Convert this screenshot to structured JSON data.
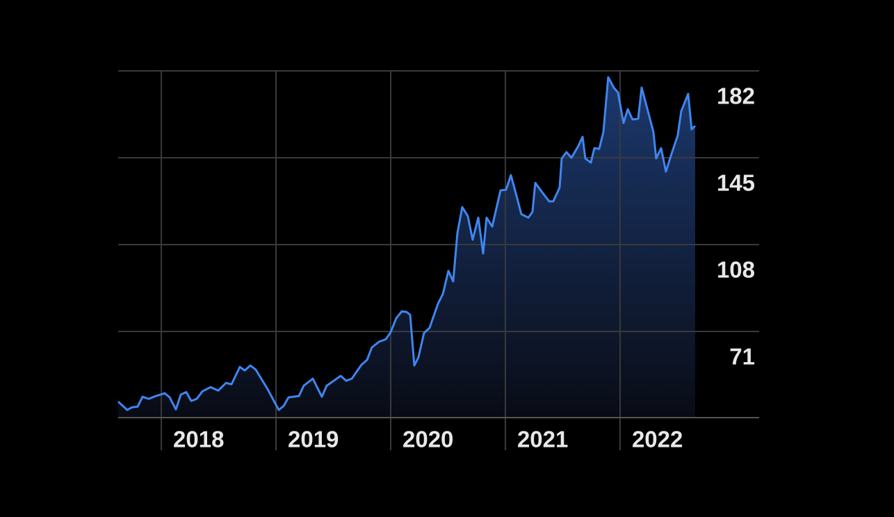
{
  "chart_data": {
    "type": "line",
    "x": [
      2017.624,
      2017.703,
      2017.745,
      2017.794,
      2017.836,
      2017.891,
      2017.952,
      2018.03,
      2018.073,
      2018.127,
      2018.17,
      2018.218,
      2018.261,
      2018.309,
      2018.358,
      2018.43,
      2018.497,
      2018.564,
      2018.612,
      2018.685,
      2018.727,
      2018.776,
      2018.824,
      2018.927,
      2019.024,
      2019.067,
      2019.109,
      2019.2,
      2019.242,
      2019.321,
      2019.4,
      2019.442,
      2019.564,
      2019.612,
      2019.661,
      2019.745,
      2019.794,
      2019.836,
      2019.897,
      2019.958,
      2020.0,
      2020.048,
      2020.097,
      2020.139,
      2020.17,
      2020.206,
      2020.242,
      2020.291,
      2020.339,
      2020.412,
      2020.455,
      2020.503,
      2020.545,
      2020.582,
      2020.624,
      2020.673,
      2020.715,
      2020.764,
      2020.806,
      2020.836,
      2020.885,
      2020.958,
      2021.006,
      2021.048,
      2021.091,
      2021.139,
      2021.2,
      2021.236,
      2021.261,
      2021.327,
      2021.382,
      2021.418,
      2021.473,
      2021.491,
      2021.533,
      2021.576,
      2021.636,
      2021.673,
      2021.697,
      2021.745,
      2021.776,
      2021.818,
      2021.855,
      2021.897,
      2021.945,
      2021.982,
      2022.03,
      2022.067,
      2022.109,
      2022.158,
      2022.188,
      2022.248,
      2022.291,
      2022.315,
      2022.358,
      2022.4,
      2022.448,
      2022.503,
      2022.533,
      2022.594,
      2022.624,
      2022.655
    ],
    "values": [
      41.1,
      37.6,
      38.7,
      39.0,
      43.2,
      42.3,
      43.5,
      44.7,
      42.9,
      37.8,
      44.1,
      45.2,
      41.4,
      42.3,
      45.5,
      47.3,
      45.8,
      49.1,
      48.5,
      55.9,
      54.4,
      56.5,
      54.7,
      46.4,
      37.6,
      39.3,
      42.9,
      43.5,
      47.9,
      50.9,
      43.2,
      47.9,
      52.1,
      50.0,
      50.9,
      56.8,
      58.9,
      64.2,
      66.6,
      67.7,
      70.7,
      76.6,
      79.6,
      79.3,
      78.1,
      56.5,
      60.0,
      70.4,
      72.5,
      82.8,
      87.0,
      96.8,
      92.3,
      113.0,
      124.0,
      120.1,
      110.1,
      119.5,
      104.2,
      119.5,
      115.7,
      131.1,
      131.4,
      137.6,
      129.9,
      121.0,
      119.5,
      121.9,
      134.3,
      129.9,
      126.4,
      126.4,
      132.3,
      144.7,
      147.4,
      145.0,
      150.0,
      153.9,
      144.7,
      142.9,
      149.1,
      148.8,
      156.0,
      179.3,
      174.9,
      172.8,
      159.8,
      165.7,
      161.3,
      161.6,
      174.9,
      163.9,
      156.0,
      144.7,
      149.1,
      139.1,
      146.5,
      154.5,
      164.8,
      172.2,
      157.1,
      158.6
    ],
    "color": "#3f86f0",
    "xlim": [
      2017.624,
      2022.655
    ],
    "xticks": [
      2018,
      2019,
      2020,
      2021,
      2022
    ],
    "ylim": [
      34.3,
      182
    ],
    "yticks": [
      71,
      108,
      145,
      182
    ],
    "grid": true
  }
}
